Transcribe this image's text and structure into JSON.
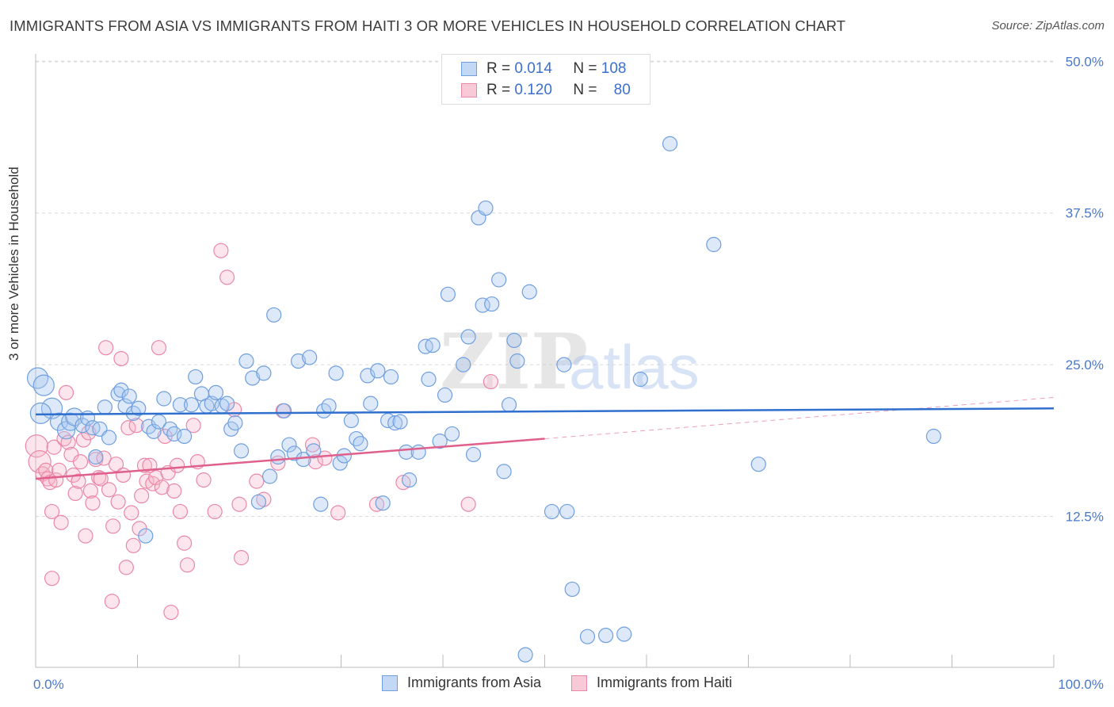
{
  "header": {
    "title": "IMMIGRANTS FROM ASIA VS IMMIGRANTS FROM HAITI 3 OR MORE VEHICLES IN HOUSEHOLD CORRELATION CHART",
    "source": "Source: ZipAtlas.com"
  },
  "stats": {
    "asia": {
      "r_label": "R =",
      "r_value": "0.014",
      "n_label": "N =",
      "n_value": "108"
    },
    "haiti": {
      "r_label": "R =",
      "r_value": "0.120",
      "n_label": "N =",
      "n_value": "80"
    }
  },
  "watermark": {
    "zip": "ZIP",
    "atlas": "atlas"
  },
  "colors": {
    "asia_fill": "#a9c8ef",
    "asia_stroke": "#6f9fdf",
    "asia_line": "#2f6fce",
    "haiti_fill": "#f5b5c8",
    "haiti_stroke": "#ea88a8",
    "haiti_line": "#e0608d",
    "tick_text": "#4a78c9",
    "grid": "#d8d8d8"
  },
  "chart_data": {
    "type": "scatter",
    "title": "IMMIGRANTS FROM ASIA VS IMMIGRANTS FROM HAITI 3 OR MORE VEHICLES IN HOUSEHOLD CORRELATION CHART",
    "xlabel": "",
    "ylabel": "3 or more Vehicles in Household",
    "xlim": [
      0,
      100
    ],
    "ylim": [
      0,
      52
    ],
    "x_tick_labels": [
      "0.0%",
      "100.0%"
    ],
    "y_ticks": [
      12.5,
      25.0,
      37.5,
      50.0
    ],
    "y_tick_labels": [
      "12.5%",
      "25.0%",
      "37.5%",
      "50.0%"
    ],
    "grid": "horizontal dashed",
    "legend_position": "bottom-center",
    "series": [
      {
        "name": "Immigrants from Asia",
        "trend": {
          "x": [
            0,
            100
          ],
          "y": [
            20.9,
            21.4
          ]
        },
        "points": [
          [
            0.2,
            23.9
          ],
          [
            0.8,
            23.3
          ],
          [
            1.6,
            21.4
          ],
          [
            2.3,
            20.3
          ],
          [
            3.0,
            19.6
          ],
          [
            3.4,
            20.3
          ],
          [
            3.8,
            20.7
          ],
          [
            4.6,
            20.0
          ],
          [
            5.1,
            20.6
          ],
          [
            5.6,
            19.8
          ],
          [
            5.9,
            17.4
          ],
          [
            6.3,
            19.7
          ],
          [
            7.2,
            19.0
          ],
          [
            6.8,
            21.5
          ],
          [
            8.1,
            22.6
          ],
          [
            8.4,
            22.9
          ],
          [
            8.8,
            21.6
          ],
          [
            9.2,
            22.4
          ],
          [
            9.6,
            21.0
          ],
          [
            10.1,
            21.4
          ],
          [
            10.8,
            10.9
          ],
          [
            11.1,
            19.9
          ],
          [
            11.6,
            19.5
          ],
          [
            12.1,
            20.3
          ],
          [
            12.6,
            22.2
          ],
          [
            13.2,
            19.7
          ],
          [
            13.6,
            19.3
          ],
          [
            14.2,
            21.7
          ],
          [
            14.6,
            19.1
          ],
          [
            15.3,
            21.7
          ],
          [
            15.7,
            24.0
          ],
          [
            16.3,
            22.6
          ],
          [
            16.8,
            21.6
          ],
          [
            17.3,
            21.8
          ],
          [
            17.7,
            22.7
          ],
          [
            18.3,
            21.6
          ],
          [
            18.8,
            21.8
          ],
          [
            19.2,
            19.7
          ],
          [
            19.6,
            20.2
          ],
          [
            20.2,
            17.9
          ],
          [
            20.7,
            25.3
          ],
          [
            21.3,
            23.9
          ],
          [
            21.9,
            13.7
          ],
          [
            22.4,
            24.3
          ],
          [
            23.0,
            15.8
          ],
          [
            23.4,
            29.1
          ],
          [
            23.8,
            17.4
          ],
          [
            24.4,
            21.2
          ],
          [
            24.9,
            18.4
          ],
          [
            25.4,
            17.7
          ],
          [
            25.8,
            25.3
          ],
          [
            26.3,
            17.2
          ],
          [
            26.9,
            25.6
          ],
          [
            27.3,
            17.9
          ],
          [
            28.0,
            13.5
          ],
          [
            28.3,
            21.2
          ],
          [
            28.8,
            21.6
          ],
          [
            29.5,
            24.3
          ],
          [
            29.9,
            16.9
          ],
          [
            30.3,
            17.5
          ],
          [
            31.0,
            20.4
          ],
          [
            31.5,
            18.9
          ],
          [
            31.9,
            18.5
          ],
          [
            32.6,
            24.1
          ],
          [
            32.9,
            21.8
          ],
          [
            33.6,
            24.5
          ],
          [
            34.1,
            13.6
          ],
          [
            34.6,
            20.4
          ],
          [
            34.9,
            24.0
          ],
          [
            35.3,
            20.2
          ],
          [
            35.8,
            20.3
          ],
          [
            36.4,
            17.8
          ],
          [
            36.7,
            15.5
          ],
          [
            37.6,
            17.8
          ],
          [
            38.3,
            26.5
          ],
          [
            38.6,
            23.8
          ],
          [
            39.0,
            26.6
          ],
          [
            39.7,
            18.7
          ],
          [
            40.2,
            22.5
          ],
          [
            40.5,
            30.8
          ],
          [
            40.9,
            19.3
          ],
          [
            42.0,
            25.0
          ],
          [
            42.5,
            27.3
          ],
          [
            43.0,
            17.6
          ],
          [
            43.5,
            37.1
          ],
          [
            43.9,
            29.9
          ],
          [
            44.2,
            37.9
          ],
          [
            44.8,
            30.0
          ],
          [
            45.5,
            32.0
          ],
          [
            46.0,
            16.2
          ],
          [
            46.5,
            21.7
          ],
          [
            47.0,
            27.0
          ],
          [
            47.3,
            25.3
          ],
          [
            48.5,
            31.0
          ],
          [
            48.1,
            1.1
          ],
          [
            50.7,
            12.9
          ],
          [
            51.9,
            25.0
          ],
          [
            52.2,
            12.9
          ],
          [
            52.7,
            6.5
          ],
          [
            54.2,
            2.6
          ],
          [
            56.0,
            2.7
          ],
          [
            57.8,
            2.8
          ],
          [
            59.4,
            23.8
          ],
          [
            62.3,
            43.2
          ],
          [
            66.6,
            34.9
          ],
          [
            71.0,
            16.8
          ],
          [
            88.2,
            19.1
          ],
          [
            0.5,
            21.0
          ]
        ]
      },
      {
        "name": "Immigrants from Haiti",
        "trend": {
          "x": [
            0,
            50
          ],
          "y": [
            15.6,
            18.9
          ]
        },
        "trend_extension": {
          "x": [
            50,
            100
          ],
          "y": [
            18.9,
            22.3
          ]
        },
        "points": [
          [
            0.1,
            18.3
          ],
          [
            0.4,
            17.0
          ],
          [
            0.7,
            16.0
          ],
          [
            1.0,
            16.3
          ],
          [
            1.2,
            15.6
          ],
          [
            1.4,
            15.3
          ],
          [
            1.6,
            7.4
          ],
          [
            1.8,
            18.2
          ],
          [
            2.0,
            15.5
          ],
          [
            2.3,
            16.3
          ],
          [
            2.5,
            12.0
          ],
          [
            2.8,
            18.9
          ],
          [
            3.0,
            22.7
          ],
          [
            3.2,
            18.6
          ],
          [
            3.5,
            17.6
          ],
          [
            3.7,
            15.9
          ],
          [
            3.9,
            14.4
          ],
          [
            4.2,
            15.4
          ],
          [
            4.4,
            17.0
          ],
          [
            4.7,
            18.8
          ],
          [
            4.9,
            10.9
          ],
          [
            5.2,
            19.4
          ],
          [
            5.4,
            14.6
          ],
          [
            5.6,
            13.6
          ],
          [
            5.9,
            17.2
          ],
          [
            6.2,
            15.7
          ],
          [
            6.4,
            15.6
          ],
          [
            6.7,
            17.3
          ],
          [
            6.9,
            26.4
          ],
          [
            7.2,
            14.7
          ],
          [
            7.5,
            5.5
          ],
          [
            7.6,
            11.7
          ],
          [
            7.9,
            16.8
          ],
          [
            8.1,
            13.7
          ],
          [
            8.4,
            25.5
          ],
          [
            8.6,
            15.9
          ],
          [
            8.9,
            8.3
          ],
          [
            9.1,
            19.8
          ],
          [
            9.4,
            12.8
          ],
          [
            9.6,
            10.1
          ],
          [
            9.9,
            20.0
          ],
          [
            10.2,
            11.5
          ],
          [
            10.4,
            14.2
          ],
          [
            10.7,
            16.7
          ],
          [
            10.9,
            15.4
          ],
          [
            11.2,
            16.7
          ],
          [
            11.5,
            15.2
          ],
          [
            11.8,
            15.7
          ],
          [
            12.1,
            26.4
          ],
          [
            12.4,
            14.9
          ],
          [
            12.7,
            19.1
          ],
          [
            13.0,
            16.1
          ],
          [
            13.3,
            4.6
          ],
          [
            13.6,
            14.6
          ],
          [
            13.9,
            16.7
          ],
          [
            14.2,
            12.9
          ],
          [
            14.6,
            10.3
          ],
          [
            14.9,
            8.5
          ],
          [
            15.5,
            20.0
          ],
          [
            15.9,
            17.0
          ],
          [
            16.5,
            15.5
          ],
          [
            17.6,
            12.9
          ],
          [
            18.2,
            34.4
          ],
          [
            18.8,
            32.2
          ],
          [
            19.5,
            21.3
          ],
          [
            20.0,
            13.5
          ],
          [
            20.2,
            9.1
          ],
          [
            21.7,
            15.4
          ],
          [
            22.4,
            13.9
          ],
          [
            23.8,
            16.9
          ],
          [
            24.3,
            21.2
          ],
          [
            27.2,
            18.4
          ],
          [
            27.5,
            17.0
          ],
          [
            28.4,
            17.3
          ],
          [
            29.7,
            12.8
          ],
          [
            33.5,
            13.5
          ],
          [
            36.1,
            15.3
          ],
          [
            42.5,
            13.5
          ],
          [
            44.7,
            23.6
          ],
          [
            1.6,
            12.9
          ]
        ]
      }
    ]
  },
  "legend": {
    "asia_label": "Immigrants from Asia",
    "haiti_label": "Immigrants from Haiti"
  }
}
